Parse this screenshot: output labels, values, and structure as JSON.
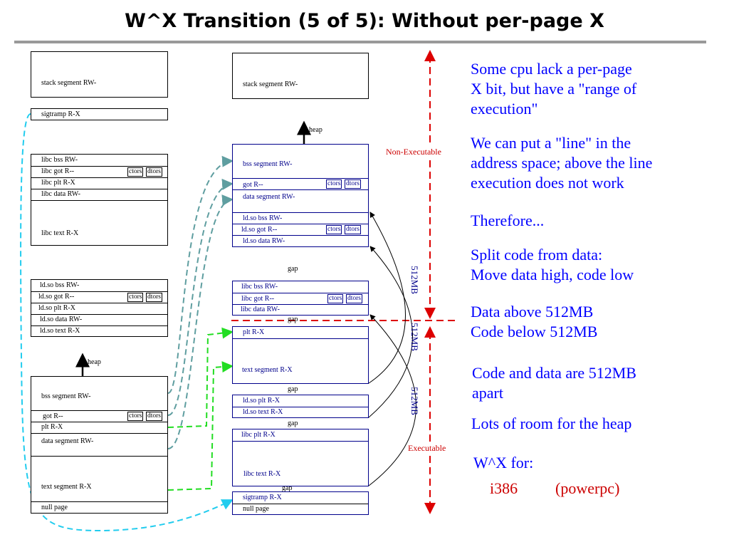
{
  "title": "W^X Transition (5 of 5): Without per-page X",
  "left": {
    "stack": "stack segment RW-",
    "sigtramp": "sigtramp R-X",
    "libc": [
      "libc bss RW-",
      "libc got R--",
      "libc plt R-X",
      "libc data RW-",
      "libc text R-X"
    ],
    "ldso": [
      "ld.so bss RW-",
      "ld.so got R--",
      "ld.so plt R-X",
      "ld.so data RW-",
      "ld.so text R-X"
    ],
    "heap": "heap",
    "main": [
      "bss segment RW-",
      "got R--",
      "plt R-X",
      "data segment RW-",
      "text segment R-X",
      "null page"
    ]
  },
  "middle": {
    "stack": "stack segment RW-",
    "heap": "heap",
    "data_group": [
      "bss segment RW-",
      "got R--",
      "data segment RW-",
      "ld.so bss RW-",
      "ld.so got R--",
      "ld.so data RW-"
    ],
    "libc_data": [
      "libc bss RW-",
      "libc got R--",
      "libc data RW-"
    ],
    "text": [
      "plt R-X",
      "text segment R-X"
    ],
    "ldso_text": [
      "ld.so plt R-X",
      "ld.so text R-X"
    ],
    "libc_text": [
      "libc plt R-X",
      "libc text R-X"
    ],
    "low": [
      "sigtramp R-X",
      "null page"
    ],
    "gap": "gap"
  },
  "tags": {
    "ctors": "ctors",
    "dtors": "dtors"
  },
  "labels": {
    "non_exec": "Non-Executable",
    "exec": "Executable",
    "size": "512MB"
  },
  "colors": {
    "accent": "#0000ff",
    "warning": "#cc0000",
    "data_link": "#5f9ea0",
    "code_link": "#22dd22",
    "sigtramp_link": "#22ccee"
  },
  "bullets": [
    "Some cpu lack a per-page\nX bit, but have a \"range of\nexecution\"",
    "We can put a \"line\" in the\naddress space; above the line\nexecution does not work",
    "Therefore...",
    "Split code from data:\nMove data high, code low",
    "Data above 512MB\nCode below 512MB",
    "Code and data are 512MB\napart",
    "Lots of room for the heap",
    "W^X for:"
  ],
  "platforms": [
    "i386",
    "(powerpc)"
  ]
}
